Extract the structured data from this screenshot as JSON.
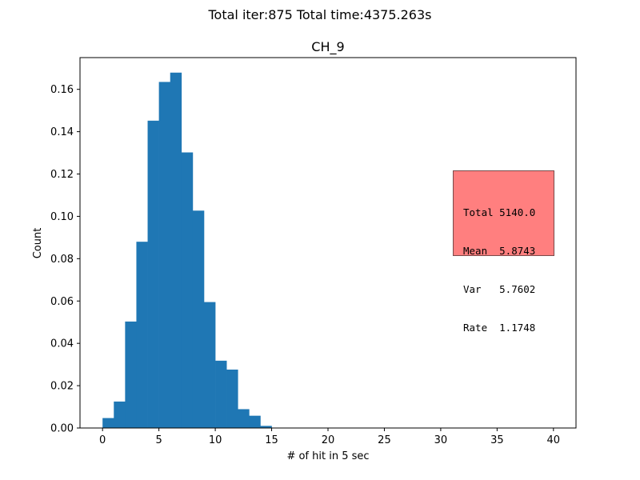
{
  "suptitle": "Total iter:875 Total time:4375.263s",
  "chart_data": {
    "type": "bar",
    "title": "CH_9",
    "xlabel": "# of hit in 5 sec",
    "ylabel": "Count",
    "xlim": [
      -2,
      42
    ],
    "ylim": [
      0,
      0.175
    ],
    "xticks": [
      0,
      5,
      10,
      15,
      20,
      25,
      30,
      35,
      40
    ],
    "yticks": [
      0.0,
      0.02,
      0.04,
      0.06,
      0.08,
      0.1,
      0.12,
      0.14,
      0.16
    ],
    "ytick_labels": [
      "0.00",
      "0.02",
      "0.04",
      "0.06",
      "0.08",
      "0.10",
      "0.12",
      "0.14",
      "0.16"
    ],
    "bin_width": 1,
    "bins": [
      {
        "x": 0,
        "value": 0.0047
      },
      {
        "x": 1,
        "value": 0.0125
      },
      {
        "x": 2,
        "value": 0.0503
      },
      {
        "x": 3,
        "value": 0.088
      },
      {
        "x": 4,
        "value": 0.1452
      },
      {
        "x": 5,
        "value": 0.1635
      },
      {
        "x": 6,
        "value": 0.1679
      },
      {
        "x": 7,
        "value": 0.1302
      },
      {
        "x": 8,
        "value": 0.1027
      },
      {
        "x": 9,
        "value": 0.0595
      },
      {
        "x": 10,
        "value": 0.0318
      },
      {
        "x": 11,
        "value": 0.0276
      },
      {
        "x": 12,
        "value": 0.0089
      },
      {
        "x": 13,
        "value": 0.0058
      },
      {
        "x": 14,
        "value": 0.001
      }
    ],
    "bar_color": "#1f77b4",
    "grid": false
  },
  "stats": {
    "lines": [
      "Total 5140.0",
      "Mean  5.8743",
      "Var   5.7602",
      "Rate  1.1748"
    ],
    "background": "#ff7f7f"
  }
}
